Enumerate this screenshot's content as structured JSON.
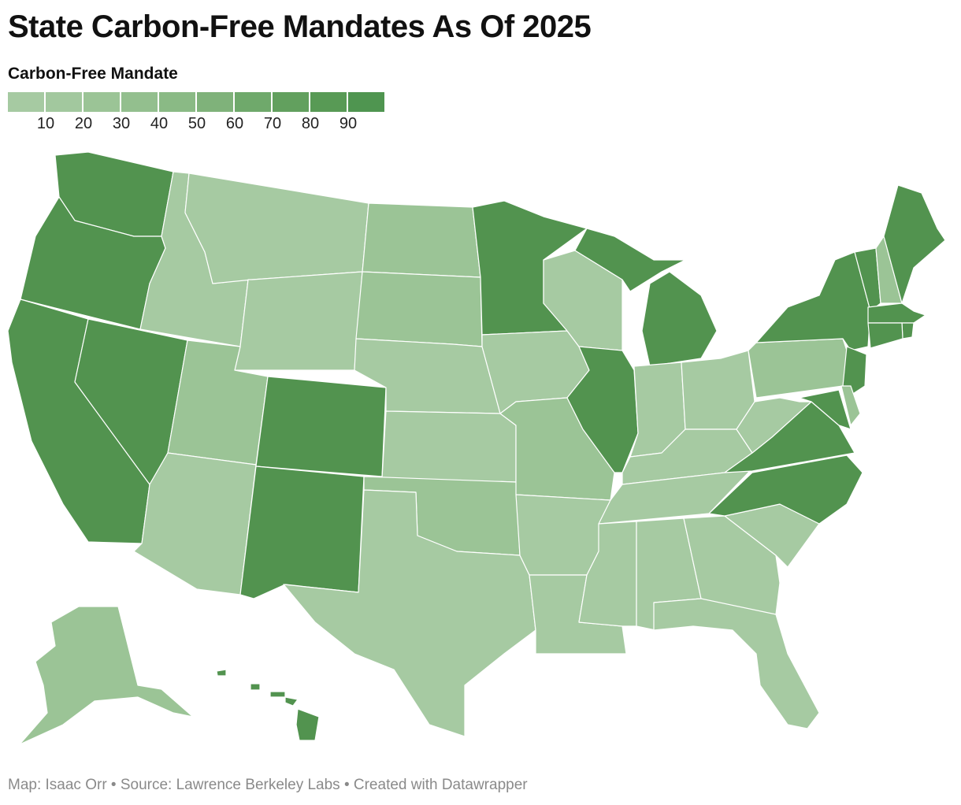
{
  "title": "State Carbon-Free Mandates As Of 2025",
  "legend": {
    "title": "Carbon-Free Mandate",
    "colors": [
      "#a6caa2",
      "#a2c89e",
      "#9bc496",
      "#93bf8e",
      "#8aba85",
      "#7fb27a",
      "#6fa96b",
      "#62a05e",
      "#589a55",
      "#4f9550"
    ],
    "ticks": [
      "10",
      "20",
      "30",
      "40",
      "50",
      "60",
      "70",
      "80",
      "90"
    ]
  },
  "map": {
    "palette": {
      "low": "#a6caa2",
      "mid": "#9bc496",
      "high": "#52934f"
    },
    "states": [
      {
        "name": "Washington",
        "level": "high"
      },
      {
        "name": "Oregon",
        "level": "high"
      },
      {
        "name": "California",
        "level": "high"
      },
      {
        "name": "Nevada",
        "level": "high"
      },
      {
        "name": "Idaho",
        "level": "low"
      },
      {
        "name": "Montana",
        "level": "low"
      },
      {
        "name": "Wyoming",
        "level": "low"
      },
      {
        "name": "Utah",
        "level": "mid"
      },
      {
        "name": "Arizona",
        "level": "low"
      },
      {
        "name": "Colorado",
        "level": "high"
      },
      {
        "name": "New Mexico",
        "level": "high"
      },
      {
        "name": "North Dakota",
        "level": "mid"
      },
      {
        "name": "South Dakota",
        "level": "mid"
      },
      {
        "name": "Nebraska",
        "level": "low"
      },
      {
        "name": "Kansas",
        "level": "low"
      },
      {
        "name": "Oklahoma",
        "level": "mid"
      },
      {
        "name": "Texas",
        "level": "low"
      },
      {
        "name": "Minnesota",
        "level": "high"
      },
      {
        "name": "Iowa",
        "level": "low"
      },
      {
        "name": "Missouri",
        "level": "mid"
      },
      {
        "name": "Arkansas",
        "level": "low"
      },
      {
        "name": "Louisiana",
        "level": "low"
      },
      {
        "name": "Wisconsin",
        "level": "low"
      },
      {
        "name": "Illinois",
        "level": "high"
      },
      {
        "name": "Michigan",
        "level": "high"
      },
      {
        "name": "Indiana",
        "level": "low"
      },
      {
        "name": "Ohio",
        "level": "low"
      },
      {
        "name": "Kentucky",
        "level": "low"
      },
      {
        "name": "Tennessee",
        "level": "low"
      },
      {
        "name": "Mississippi",
        "level": "low"
      },
      {
        "name": "Alabama",
        "level": "low"
      },
      {
        "name": "Georgia",
        "level": "low"
      },
      {
        "name": "Florida",
        "level": "low"
      },
      {
        "name": "South Carolina",
        "level": "low"
      },
      {
        "name": "North Carolina",
        "level": "high"
      },
      {
        "name": "Virginia",
        "level": "high"
      },
      {
        "name": "West Virginia",
        "level": "low"
      },
      {
        "name": "Pennsylvania",
        "level": "mid"
      },
      {
        "name": "New York",
        "level": "high"
      },
      {
        "name": "New Jersey",
        "level": "high"
      },
      {
        "name": "Maryland",
        "level": "high"
      },
      {
        "name": "Delaware",
        "level": "mid"
      },
      {
        "name": "Vermont",
        "level": "high"
      },
      {
        "name": "New Hampshire",
        "level": "mid"
      },
      {
        "name": "Maine",
        "level": "high"
      },
      {
        "name": "Massachusetts",
        "level": "high"
      },
      {
        "name": "Rhode Island",
        "level": "high"
      },
      {
        "name": "Connecticut",
        "level": "high"
      },
      {
        "name": "Alaska",
        "level": "mid"
      },
      {
        "name": "Hawaii",
        "level": "high"
      }
    ]
  },
  "footer": "Map: Isaac Orr • Source: Lawrence Berkeley Labs • Created with Datawrapper"
}
